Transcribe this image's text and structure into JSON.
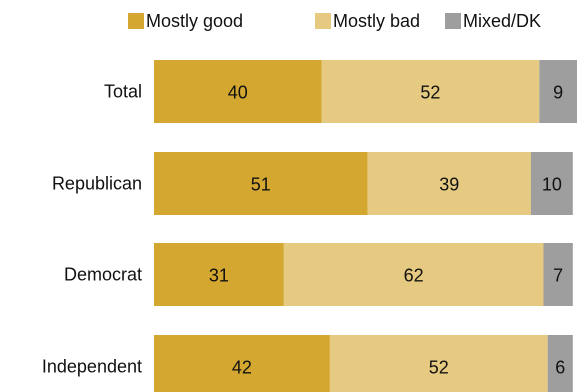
{
  "chart_data": {
    "type": "bar",
    "orientation": "horizontal",
    "stacked": true,
    "title": "",
    "xlabel": "",
    "ylabel": "",
    "xlim": [
      0,
      101
    ],
    "grid": false,
    "legend_position": "top",
    "categories": [
      "Total",
      "Republican",
      "Democrat",
      "Independent"
    ],
    "series": [
      {
        "name": "Mostly good",
        "color": "#D3A730",
        "values": [
          40,
          51,
          31,
          42
        ],
        "labels": [
          "40",
          "51",
          "31",
          "42"
        ]
      },
      {
        "name": "Mostly bad",
        "color": "#E6CA82",
        "values": [
          52,
          39,
          62,
          52
        ],
        "labels": [
          "52",
          "39",
          "62",
          "52"
        ]
      },
      {
        "name": "Mixed/DK",
        "color": "#9E9E9E",
        "values": [
          9,
          10,
          7,
          6
        ],
        "labels": [
          "9",
          "10",
          "7",
          "6"
        ]
      }
    ]
  }
}
